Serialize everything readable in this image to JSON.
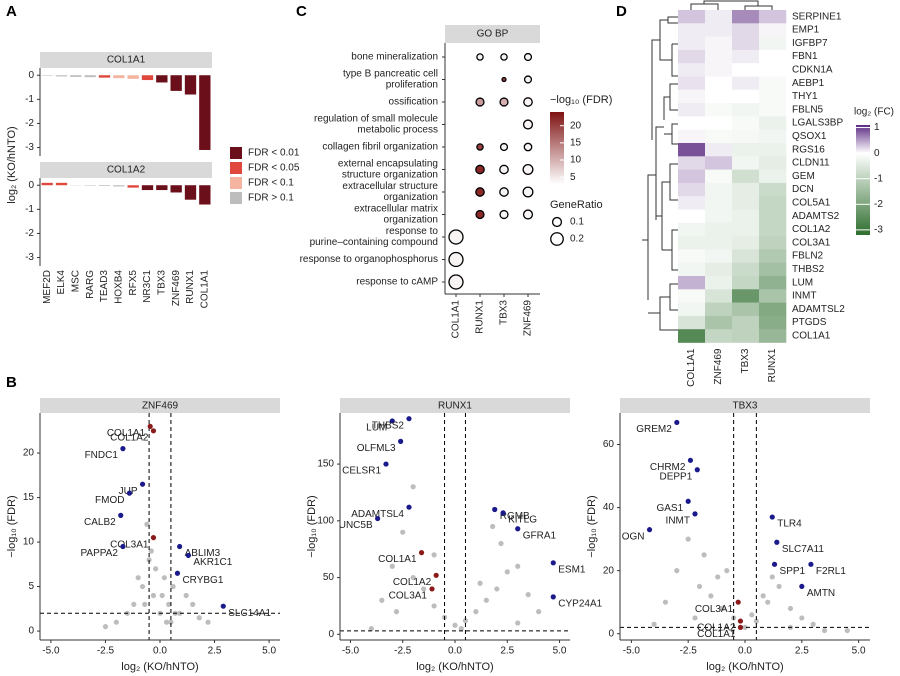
{
  "chart_data": [
    {
      "type": "bar",
      "panel": "A",
      "ylabel": "log₂ (KO/hNTO)",
      "categories": [
        "MEF2D",
        "ELK4",
        "MSC",
        "RARG",
        "TEAD3",
        "HOXB4",
        "RFX5",
        "NR3C1",
        "TBX3",
        "ZNF469",
        "RUNX1",
        "COL1A1"
      ],
      "facets": [
        {
          "title": "COL1A1",
          "values": [
            -0.02,
            -0.05,
            -0.07,
            -0.08,
            -0.1,
            -0.12,
            -0.15,
            -0.2,
            -0.3,
            -0.65,
            -0.8,
            -3.1
          ],
          "colors": [
            "#bdbdbd",
            "#bdbdbd",
            "#bdbdbd",
            "#bdbdbd",
            "#e0483e",
            "#f4b4a0",
            "#f4b4a0",
            "#e0483e",
            "#6b0f1a",
            "#6b0f1a",
            "#6b0f1a",
            "#6b0f1a"
          ]
        },
        {
          "title": "COL1A2",
          "values": [
            0.1,
            0.1,
            0.01,
            -0.02,
            -0.03,
            -0.05,
            -0.1,
            -0.2,
            -0.2,
            -0.3,
            -0.6,
            -0.8
          ],
          "colors": [
            "#e0483e",
            "#e0483e",
            "#bdbdbd",
            "#bdbdbd",
            "#bdbdbd",
            "#bdbdbd",
            "#e0483e",
            "#6b0f1a",
            "#6b0f1a",
            "#6b0f1a",
            "#6b0f1a",
            "#6b0f1a"
          ]
        }
      ],
      "ylim": [
        -3.35,
        0.3
      ],
      "yticks": [
        0,
        -1,
        -2,
        -3
      ],
      "legend": {
        "labels": [
          "FDR < 0.01",
          "FDR < 0.05",
          "FDR < 0.1",
          "FDR > 0.1"
        ],
        "colors": [
          "#6b0f1a",
          "#e0483e",
          "#f4b4a0",
          "#bdbdbd"
        ]
      }
    },
    {
      "type": "dot",
      "panel": "C",
      "title": "GO BP",
      "columns": [
        "COL1A1",
        "RUNX1",
        "TBX3",
        "ZNF469"
      ],
      "terms": [
        [
          "bone mineralization"
        ],
        [
          "type B pancreatic cell",
          "proliferation"
        ],
        [
          "ossification"
        ],
        [
          "regulation of small molecule",
          "metabolic process"
        ],
        [
          "collagen fibril organization"
        ],
        [
          "external encapsulating",
          "structure organization"
        ],
        [
          "extracellular structure",
          "organization"
        ],
        [
          "extracellular matrix",
          "organization"
        ],
        [
          "response to",
          "purine–containing compound"
        ],
        [
          "response to organophosphorus"
        ],
        [
          "response to cAMP"
        ]
      ],
      "values": [
        [
          null,
          4,
          4,
          4
        ],
        [
          null,
          null,
          20,
          4
        ],
        [
          null,
          12,
          10,
          4
        ],
        [
          null,
          null,
          null,
          4
        ],
        [
          null,
          20,
          4,
          4
        ],
        [
          null,
          22,
          4,
          4
        ],
        [
          null,
          22,
          4,
          4
        ],
        [
          null,
          22,
          4,
          4
        ],
        [
          4,
          null,
          null,
          null
        ],
        [
          4,
          null,
          null,
          null
        ],
        [
          4,
          null,
          null,
          null
        ]
      ],
      "sizes": [
        [
          null,
          0.05,
          0.05,
          0.06
        ],
        [
          null,
          null,
          0.02,
          0.06
        ],
        [
          null,
          0.08,
          0.08,
          0.09
        ],
        [
          null,
          null,
          null,
          0.1
        ],
        [
          null,
          0.05,
          0.06,
          0.07
        ],
        [
          null,
          0.09,
          0.09,
          0.12
        ],
        [
          null,
          0.09,
          0.09,
          0.12
        ],
        [
          null,
          0.08,
          0.08,
          0.1
        ],
        [
          0.25,
          null,
          null,
          null
        ],
        [
          0.25,
          null,
          null,
          null
        ],
        [
          0.25,
          null,
          null,
          null
        ]
      ],
      "colorbar": {
        "title": "−log₁₀ (FDR)",
        "lim": [
          3,
          24
        ],
        "ticks": [
          5,
          10,
          15,
          20
        ],
        "colors": [
          "#ffffff",
          "#7f1313"
        ]
      },
      "size_legend": {
        "title": "GeneRatio",
        "values": [
          0.1,
          0.2
        ]
      }
    },
    {
      "type": "heatmap",
      "panel": "D",
      "columns": [
        "COL1A1",
        "ZNF469",
        "TBX3",
        "RUNX1"
      ],
      "rows": [
        "SERPINE1",
        "EMP1",
        "IGFBP7",
        "FBN1",
        "CDKN1A",
        "AEBP1",
        "THY1",
        "FBLN5",
        "LGALS3BP",
        "QSOX1",
        "RGS16",
        "CLDN11",
        "GEM",
        "DCN",
        "COL5A1",
        "ADAMTS2",
        "COL1A2",
        "COL3A1",
        "FBLN2",
        "THBS2",
        "LUM",
        "INMT",
        "ADAMTSL2",
        "PTGDS",
        "COL1A1"
      ],
      "values": [
        [
          0.3,
          0.1,
          0.6,
          0.3
        ],
        [
          0.1,
          0.1,
          0.2,
          0.05
        ],
        [
          0.1,
          0.05,
          0.2,
          -0.2
        ],
        [
          0.2,
          0.05,
          0.1,
          0
        ],
        [
          0.1,
          0.05,
          0,
          0
        ],
        [
          0.15,
          0,
          0.1,
          -0.1
        ],
        [
          0.05,
          0,
          0,
          -0.1
        ],
        [
          0.1,
          -0.1,
          -0.2,
          -0.1
        ],
        [
          0,
          0,
          -0.1,
          -0.3
        ],
        [
          0.05,
          -0.1,
          -0.15,
          -0.2
        ],
        [
          0.9,
          0.1,
          -0.3,
          -0.3
        ],
        [
          0.2,
          0.3,
          -0.2,
          -0.4
        ],
        [
          0.3,
          -0.1,
          -0.7,
          -0.3
        ],
        [
          0.2,
          -0.2,
          -0.4,
          -0.8
        ],
        [
          0.1,
          -0.2,
          -0.4,
          -0.9
        ],
        [
          0,
          -0.2,
          -0.3,
          -0.9
        ],
        [
          -0.2,
          -0.3,
          -0.3,
          -0.9
        ],
        [
          -0.3,
          -0.3,
          -0.4,
          -1.0
        ],
        [
          -0.1,
          -0.2,
          -0.6,
          -1.2
        ],
        [
          -0.2,
          -0.4,
          -0.8,
          -1.4
        ],
        [
          0.4,
          -0.3,
          -0.9,
          -1.7
        ],
        [
          -0.1,
          -0.6,
          -2.3,
          -1.3
        ],
        [
          -0.2,
          -1.0,
          -1.3,
          -1.9
        ],
        [
          -0.6,
          -1.3,
          -1.0,
          -1.8
        ],
        [
          -2.6,
          -0.9,
          -1.0,
          -1.6
        ]
      ],
      "colorbar": {
        "title": "log₂ (FC)",
        "lim": [
          -3.2,
          1.1
        ],
        "ticks": [
          1,
          0,
          -1,
          -2,
          -3
        ],
        "colors": [
          "#2e6e2e",
          "#ffffff",
          "#5b2a82"
        ]
      }
    },
    {
      "type": "volcano",
      "panel": "B",
      "title": "ZNF469",
      "xlabel": "log₂ (KO/hNTO)",
      "ylabel": "−log₁₀ (FDR)",
      "xlim": [
        -5.5,
        5.5
      ],
      "xticks": [
        {
          "value": -5,
          "label": "-5.0"
        },
        -2.5,
        {
          "value": 0,
          "label": "0.0"
        },
        2.5,
        {
          "value": 5,
          "label": "5.0"
        }
      ],
      "ylim": [
        -1,
        24.5
      ],
      "yticks": [
        0,
        5,
        10,
        15,
        20
      ],
      "vlines": [
        -0.5,
        0.5
      ],
      "hline": 2,
      "background": {
        "color": "#bdbdbd",
        "x": [
          -1.2,
          -0.8,
          -0.5,
          -0.3,
          0,
          0.2,
          0.4,
          0.6,
          0.9,
          1.2,
          1.5,
          -1.5,
          -2,
          -0.6,
          0.3,
          -0.2,
          0.7,
          1.8,
          -1,
          0.1,
          -0.4,
          2.2,
          -2.5,
          0.5,
          -0.7
        ],
        "y": [
          3,
          5,
          8,
          4,
          2,
          6,
          3,
          5,
          2,
          4,
          3,
          2,
          1,
          12,
          1,
          7,
          2,
          1.5,
          6,
          4,
          9,
          1,
          0.5,
          1,
          3
        ]
      },
      "labels": [
        "COL1A1",
        "COL1A2",
        "FNDC1",
        "JUP",
        "FMOD",
        "CALB2",
        "COL3A1",
        "PAPPA2",
        "ABLIM3",
        "CRYBG1",
        "AKR1C1",
        "SLC14A1"
      ],
      "x": [
        -0.45,
        -0.3,
        -1.7,
        -0.8,
        -1.4,
        -1.8,
        -0.3,
        -1.7,
        0.9,
        0.8,
        1.3,
        2.9
      ],
      "y": [
        23,
        22.5,
        20.5,
        16.5,
        15.5,
        13,
        10.5,
        9.5,
        9.5,
        6.5,
        8.5,
        2.8
      ],
      "colors": [
        "#8b1a1a",
        "#8b1a1a",
        "#1a1a8c",
        "#1a1a8c",
        "#1a1a8c",
        "#1a1a8c",
        "#8b1a1a",
        "#1a1a8c",
        "#1a1a8c",
        "#1a1a8c",
        "#1a1a8c",
        "#1a1a8c"
      ]
    },
    {
      "type": "volcano",
      "title": "RUNX1",
      "xlabel": "log₂ (KO/hNTO)",
      "ylabel": "−log₁₀ (FDR)",
      "xlim": [
        -5.5,
        5.5
      ],
      "xticks": [
        {
          "value": -5,
          "label": "-5.0"
        },
        -2.5,
        {
          "value": 0,
          "label": "0.0"
        },
        2.5,
        {
          "value": 5,
          "label": "5.0"
        }
      ],
      "ylim": [
        -5,
        195
      ],
      "yticks": [
        0,
        50,
        100,
        150
      ],
      "vlines": [
        -0.5,
        0.5
      ],
      "hline": 3,
      "background": {
        "color": "#bdbdbd",
        "x": [
          -3.5,
          -3,
          -2.5,
          -2,
          -1.5,
          -1,
          -0.5,
          0,
          0.5,
          1,
          1.5,
          2,
          2.5,
          3,
          3.5,
          4,
          -2,
          -1,
          0.3,
          1.2,
          2.2,
          -2.8,
          3,
          -4,
          1.8
        ],
        "y": [
          30,
          60,
          90,
          50,
          40,
          25,
          15,
          8,
          12,
          20,
          30,
          40,
          55,
          60,
          35,
          20,
          130,
          70,
          5,
          45,
          80,
          20,
          10,
          5,
          95
        ]
      },
      "labels": [
        "LUM",
        "THBS2",
        "OLFML3",
        "CELSR1",
        "ADAMTSL4",
        "UNC5B",
        "COL1A1",
        "COL1A2",
        "COL3A1",
        "RGMB",
        "KITLG",
        "GFRA1",
        "ESM1",
        "CYP24A1"
      ],
      "x": [
        -3.0,
        -2.2,
        -2.6,
        -3.3,
        -2.2,
        -3.7,
        -1.6,
        -0.9,
        -1.1,
        1.9,
        2.3,
        3.0,
        4.7,
        4.7
      ],
      "y": [
        188,
        190,
        170,
        150,
        112,
        102,
        72,
        52,
        40,
        110,
        107,
        93,
        63,
        33
      ],
      "colors": [
        "#1a1a8c",
        "#1a1a8c",
        "#1a1a8c",
        "#1a1a8c",
        "#1a1a8c",
        "#1a1a8c",
        "#8b1a1a",
        "#8b1a1a",
        "#8b1a1a",
        "#1a1a8c",
        "#1a1a8c",
        "#1a1a8c",
        "#1a1a8c",
        "#1a1a8c"
      ]
    },
    {
      "type": "volcano",
      "title": "TBX3",
      "xlabel": "log₂ (KO/hNTO)",
      "ylabel": "−log₁₀ (FDR)",
      "xlim": [
        -5.5,
        5.5
      ],
      "xticks": [
        {
          "value": -5,
          "label": "-5.0"
        },
        -2.5,
        {
          "value": 0,
          "label": "0.0"
        },
        2.5,
        {
          "value": 5,
          "label": "5.0"
        }
      ],
      "ylim": [
        -2,
        70
      ],
      "yticks": [
        0,
        20,
        40,
        60
      ],
      "vlines": [
        -0.5,
        0.5
      ],
      "hline": 2,
      "background": {
        "color": "#bdbdbd",
        "x": [
          -3.5,
          -3,
          -2.5,
          -2,
          -1.5,
          -1,
          -0.5,
          0,
          0.5,
          1,
          1.5,
          2,
          2.5,
          3,
          -1.8,
          -1.2,
          0.8,
          2,
          -4,
          4.5,
          -0.8,
          0.3,
          1.2,
          -2.2,
          3.5
        ],
        "y": [
          10,
          20,
          30,
          15,
          12,
          8,
          5,
          2,
          4,
          10,
          15,
          8,
          5,
          3,
          25,
          18,
          12,
          2,
          3,
          1,
          20,
          6,
          18,
          5,
          1
        ]
      },
      "labels": [
        "GREM2",
        "CHRM2",
        "DEPP1",
        "GAS1",
        "INMT",
        "OGN",
        "TLR4",
        "SLC7A11",
        "SPP1",
        "F2RL1",
        "AMTN",
        "COL3A1",
        "COL1A2",
        "COL1A1"
      ],
      "x": [
        -3.0,
        -2.4,
        -2.1,
        -2.5,
        -2.2,
        -4.2,
        1.2,
        1.4,
        1.3,
        2.9,
        2.5,
        -0.3,
        -0.2,
        -0.2
      ],
      "y": [
        67,
        55,
        52,
        42,
        38,
        33,
        37,
        29,
        22,
        22,
        15,
        10,
        4,
        2
      ],
      "colors": [
        "#1a1a8c",
        "#1a1a8c",
        "#1a1a8c",
        "#1a1a8c",
        "#1a1a8c",
        "#1a1a8c",
        "#1a1a8c",
        "#1a1a8c",
        "#1a1a8c",
        "#1a1a8c",
        "#1a1a8c",
        "#8b1a1a",
        "#8b1a1a",
        "#8b1a1a"
      ]
    }
  ]
}
